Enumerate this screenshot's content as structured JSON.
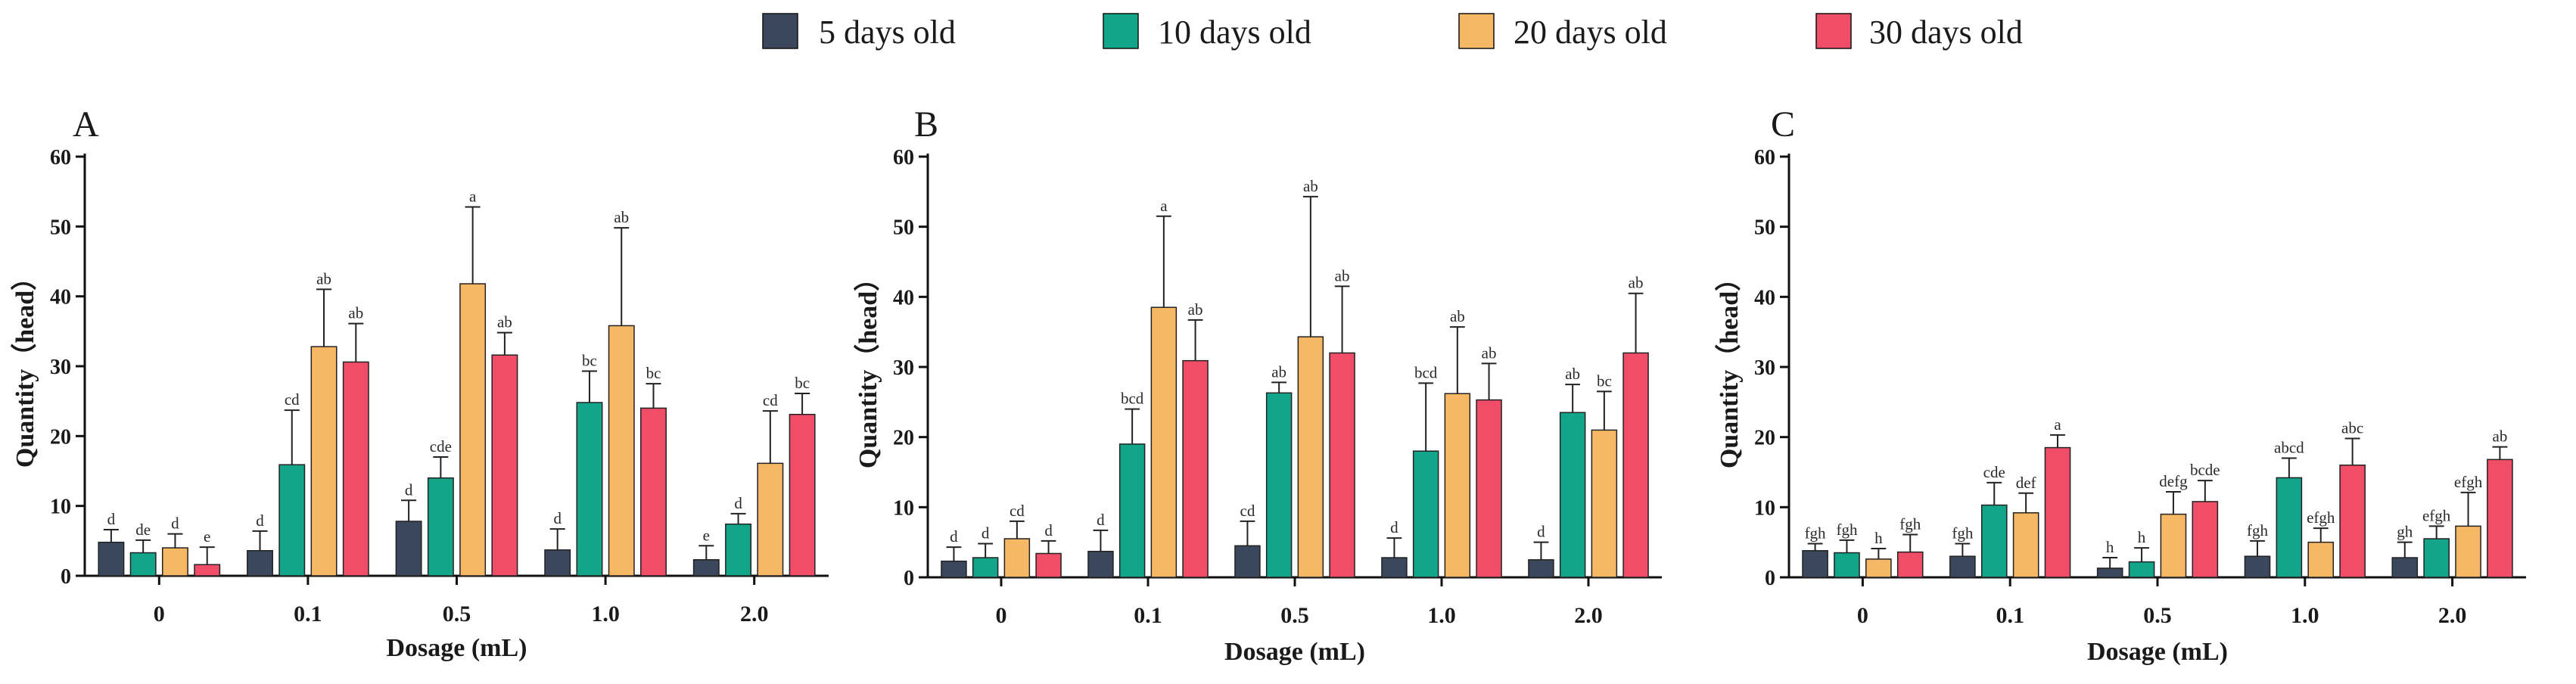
{
  "legend": [
    {
      "label": "5 days old",
      "color": "#3a475c"
    },
    {
      "label": "10 days old",
      "color": "#12a58a"
    },
    {
      "label": "20 days old",
      "color": "#f7b865"
    },
    {
      "label": "30 days old",
      "color": "#f04d69"
    }
  ],
  "chart_data": [
    {
      "panel": "A",
      "type": "bar",
      "categories": [
        "0",
        "0.1",
        "0.5",
        "1.0",
        "2.0"
      ],
      "xlabel": "Dosage (mL)",
      "ylabel": "Quantity（head）",
      "ylim": [
        0,
        60
      ],
      "yticks": [
        "0",
        "10",
        "20",
        "30",
        "40",
        "50",
        "60"
      ],
      "series": [
        {
          "name": "5 days old",
          "values": [
            4.8,
            3.6,
            7.8,
            3.7,
            2.3
          ],
          "errors": [
            1.8,
            2.8,
            3.0,
            3.0,
            2.0
          ],
          "labels": [
            "d",
            "d",
            "d",
            "d",
            "e"
          ]
        },
        {
          "name": "10 days old",
          "values": [
            3.3,
            15.9,
            14.0,
            24.8,
            7.4
          ],
          "errors": [
            1.8,
            7.8,
            3.0,
            4.5,
            1.5
          ],
          "labels": [
            "de",
            "cd",
            "cde",
            "bc",
            "d"
          ]
        },
        {
          "name": "20 days old",
          "values": [
            4.0,
            32.8,
            41.8,
            35.8,
            16.1
          ],
          "errors": [
            2.0,
            8.2,
            11.0,
            14.0,
            7.5
          ],
          "labels": [
            "d",
            "ab",
            "a",
            "ab",
            "cd"
          ]
        },
        {
          "name": "30 days old",
          "values": [
            1.6,
            30.6,
            31.6,
            24.0,
            23.1
          ],
          "errors": [
            2.5,
            5.5,
            3.2,
            3.5,
            3.0
          ],
          "labels": [
            "e",
            "ab",
            "ab",
            "bc",
            "bc"
          ]
        }
      ]
    },
    {
      "panel": "B",
      "type": "bar",
      "categories": [
        "0",
        "0.1",
        "0.5",
        "1.0",
        "2.0"
      ],
      "xlabel": "Dosage (mL)",
      "ylabel": "Quantity（head）",
      "ylim": [
        0,
        60
      ],
      "yticks": [
        "0",
        "10",
        "20",
        "30",
        "40",
        "50",
        "60"
      ],
      "series": [
        {
          "name": "5 days old",
          "values": [
            2.3,
            3.7,
            4.5,
            2.8,
            2.5
          ],
          "errors": [
            2.0,
            3.0,
            3.5,
            2.8,
            2.5
          ],
          "labels": [
            "d",
            "d",
            "cd",
            "d",
            "d"
          ]
        },
        {
          "name": "10 days old",
          "values": [
            2.8,
            19.0,
            26.3,
            18.0,
            23.5
          ],
          "errors": [
            2.0,
            5.0,
            1.5,
            9.7,
            4.0
          ],
          "labels": [
            "d",
            "bcd",
            "ab",
            "bcd",
            "ab"
          ]
        },
        {
          "name": "20 days old",
          "values": [
            5.5,
            38.5,
            34.3,
            26.2,
            21.0
          ],
          "errors": [
            2.5,
            13.0,
            20.0,
            9.5,
            5.5
          ],
          "labels": [
            "cd",
            "a",
            "ab",
            "ab",
            "bc"
          ]
        },
        {
          "name": "30 days old",
          "values": [
            3.4,
            30.9,
            32.0,
            25.3,
            32.0
          ],
          "errors": [
            1.8,
            5.8,
            9.5,
            5.2,
            8.5
          ],
          "labels": [
            "d",
            "ab",
            "ab",
            "ab",
            "ab"
          ]
        }
      ]
    },
    {
      "panel": "C",
      "type": "bar",
      "categories": [
        "0",
        "0.1",
        "0.5",
        "1.0",
        "2.0"
      ],
      "xlabel": "Dosage (mL)",
      "ylabel": "Quantity（head）",
      "ylim": [
        0,
        60
      ],
      "yticks": [
        "0",
        "10",
        "20",
        "30",
        "40",
        "50",
        "60"
      ],
      "series": [
        {
          "name": "5 days old",
          "values": [
            3.8,
            3.0,
            1.3,
            3.0,
            2.8
          ],
          "errors": [
            1.0,
            1.8,
            1.5,
            2.2,
            2.2
          ],
          "labels": [
            "fgh",
            "fgh",
            "h",
            "fgh",
            "gh"
          ]
        },
        {
          "name": "10 days old",
          "values": [
            3.5,
            10.3,
            2.2,
            14.2,
            5.5
          ],
          "errors": [
            1.8,
            3.2,
            2.0,
            2.8,
            1.8
          ],
          "labels": [
            "fgh",
            "cde",
            "h",
            "abcd",
            "efgh"
          ]
        },
        {
          "name": "20 days old",
          "values": [
            2.6,
            9.2,
            9.0,
            5.0,
            7.3
          ],
          "errors": [
            1.5,
            2.8,
            3.2,
            2.0,
            4.8
          ],
          "labels": [
            "h",
            "def",
            "defg",
            "efgh",
            "efgh"
          ]
        },
        {
          "name": "30 days old",
          "values": [
            3.6,
            18.5,
            10.8,
            16.0,
            16.8
          ],
          "errors": [
            2.5,
            1.8,
            3.0,
            3.8,
            1.8
          ],
          "labels": [
            "fgh",
            "a",
            "bcde",
            "abc",
            "ab"
          ]
        }
      ]
    }
  ]
}
